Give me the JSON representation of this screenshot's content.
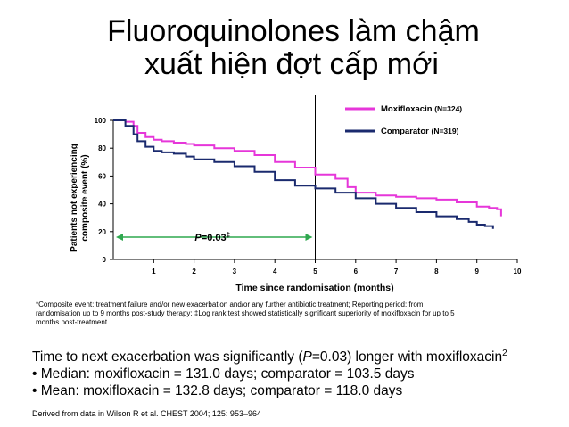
{
  "title": {
    "line1": "Fluoroquinolones làm chậm",
    "line2": "xuất hiện đợt cấp mới"
  },
  "chart_data": {
    "type": "line",
    "xlabel": "Time since randomisation (months)",
    "ylabel_line1": "Patients not experiencing",
    "ylabel_line2": "composite event (%)",
    "xlim": [
      0,
      10
    ],
    "ylim": [
      0,
      100
    ],
    "xticks": [
      1,
      2,
      3,
      4,
      5,
      6,
      7,
      8,
      9,
      10
    ],
    "yticks": [
      0,
      20,
      40,
      60,
      80,
      100
    ],
    "reference_line_x": 5,
    "annotation": {
      "text_P": "P",
      "text_rest": "=0.03",
      "text_sup": "‡",
      "x_from": 0,
      "x_to": 5,
      "y": 16
    },
    "legend_position": "top-right",
    "series": [
      {
        "name": "Moxifloxacin",
        "n_label": "(N=324)",
        "color": "#e636d9",
        "x": [
          0,
          0.3,
          0.5,
          0.6,
          0.8,
          1.0,
          1.2,
          1.5,
          1.8,
          2.0,
          2.5,
          3.0,
          3.5,
          4.0,
          4.5,
          5.0,
          5.5,
          5.8,
          6.0,
          6.5,
          7.0,
          7.5,
          8.0,
          8.5,
          9.0,
          9.3,
          9.5,
          9.6
        ],
        "y": [
          100,
          99,
          96,
          91,
          88,
          86,
          85,
          84,
          83,
          82,
          80,
          78,
          75,
          70,
          66,
          61,
          58,
          52,
          48,
          46,
          45,
          44,
          43,
          41,
          38,
          37,
          36,
          31
        ]
      },
      {
        "name": "Comparator",
        "n_label": "(N=319)",
        "color": "#1a2a6e",
        "x": [
          0,
          0.3,
          0.5,
          0.6,
          0.8,
          1.0,
          1.2,
          1.5,
          1.8,
          2.0,
          2.5,
          3.0,
          3.5,
          4.0,
          4.5,
          5.0,
          5.5,
          6.0,
          6.5,
          7.0,
          7.5,
          8.0,
          8.5,
          8.8,
          9.0,
          9.2,
          9.4
        ],
        "y": [
          100,
          96,
          90,
          85,
          81,
          78,
          77,
          76,
          74,
          72,
          70,
          67,
          63,
          57,
          53,
          51,
          48,
          44,
          40,
          37,
          34,
          31,
          29,
          27,
          25,
          24,
          22
        ]
      }
    ]
  },
  "footnote": {
    "line1": "*Composite event: treatment failure and/or new exacerbation and/or any further antibiotic treatment; Reporting period: from",
    "line2": "randomisation up to 9 months post-study therapy; ‡Log rank test showed statistically significant superiority of moxifloxacin for up to 5",
    "line3": "months post-treatment"
  },
  "summary": {
    "line1_a": "Time to next exacerbation was significantly (",
    "line1_p": "P",
    "line1_b": "=0.03) longer with moxifloxacin",
    "line1_sup": "2",
    "line2": "• Median: moxifloxacin = 131.0 days; comparator = 103.5 days",
    "line3": "• Mean: moxifloxacin = 132.8 days; comparator = 118.0 days"
  },
  "source": "Derived from data in Wilson R et al. CHEST 2004; 125: 953–964"
}
